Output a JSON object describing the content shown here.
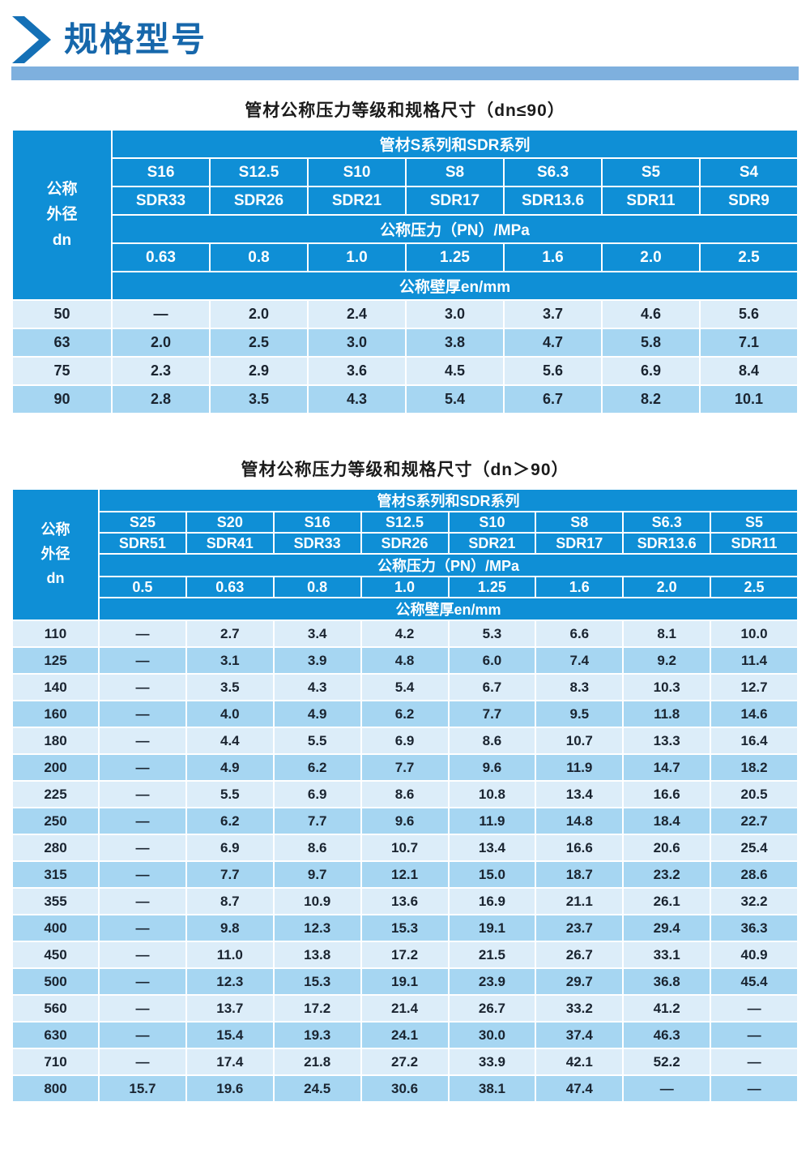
{
  "header": {
    "title": "规格型号"
  },
  "colors": {
    "header_blue": "#0f8fd6",
    "row_light": "#dcedf9",
    "row_dark": "#a6d6f2",
    "banner_blue": "#7eb0de",
    "accent_blue": "#1667ab",
    "cell_text": "#1a2430"
  },
  "tables": [
    {
      "title": "管材公称压力等级和规格尺寸（dn≤90）",
      "corner_label": "公称\n外径\ndn",
      "series_header": "管材S系列和SDR系列",
      "s_series": [
        "S16",
        "S12.5",
        "S10",
        "S8",
        "S6.3",
        "S5",
        "S4"
      ],
      "sdr_series": [
        "SDR33",
        "SDR26",
        "SDR21",
        "SDR17",
        "SDR13.6",
        "SDR11",
        "SDR9"
      ],
      "pressure_header": "公称压力（PN）/MPa",
      "pn_values": [
        "0.63",
        "0.8",
        "1.0",
        "1.25",
        "1.6",
        "2.0",
        "2.5"
      ],
      "thickness_header": "公称壁厚en/mm",
      "rows": [
        {
          "dn": "50",
          "values": [
            "—",
            "2.0",
            "2.4",
            "3.0",
            "3.7",
            "4.6",
            "5.6"
          ]
        },
        {
          "dn": "63",
          "values": [
            "2.0",
            "2.5",
            "3.0",
            "3.8",
            "4.7",
            "5.8",
            "7.1"
          ]
        },
        {
          "dn": "75",
          "values": [
            "2.3",
            "2.9",
            "3.6",
            "4.5",
            "5.6",
            "6.9",
            "8.4"
          ]
        },
        {
          "dn": "90",
          "values": [
            "2.8",
            "3.5",
            "4.3",
            "5.4",
            "6.7",
            "8.2",
            "10.1"
          ]
        }
      ]
    },
    {
      "title": "管材公称压力等级和规格尺寸（dn＞90）",
      "corner_label": "公称\n外径\ndn",
      "series_header": "管材S系列和SDR系列",
      "s_series": [
        "S25",
        "S20",
        "S16",
        "S12.5",
        "S10",
        "S8",
        "S6.3",
        "S5"
      ],
      "sdr_series": [
        "SDR51",
        "SDR41",
        "SDR33",
        "SDR26",
        "SDR21",
        "SDR17",
        "SDR13.6",
        "SDR11"
      ],
      "pressure_header": "公称压力（PN）/MPa",
      "pn_values": [
        "0.5",
        "0.63",
        "0.8",
        "1.0",
        "1.25",
        "1.6",
        "2.0",
        "2.5"
      ],
      "thickness_header": "公称壁厚en/mm",
      "rows": [
        {
          "dn": "110",
          "values": [
            "—",
            "2.7",
            "3.4",
            "4.2",
            "5.3",
            "6.6",
            "8.1",
            "10.0"
          ]
        },
        {
          "dn": "125",
          "values": [
            "—",
            "3.1",
            "3.9",
            "4.8",
            "6.0",
            "7.4",
            "9.2",
            "11.4"
          ]
        },
        {
          "dn": "140",
          "values": [
            "—",
            "3.5",
            "4.3",
            "5.4",
            "6.7",
            "8.3",
            "10.3",
            "12.7"
          ]
        },
        {
          "dn": "160",
          "values": [
            "—",
            "4.0",
            "4.9",
            "6.2",
            "7.7",
            "9.5",
            "11.8",
            "14.6"
          ]
        },
        {
          "dn": "180",
          "values": [
            "—",
            "4.4",
            "5.5",
            "6.9",
            "8.6",
            "10.7",
            "13.3",
            "16.4"
          ]
        },
        {
          "dn": "200",
          "values": [
            "—",
            "4.9",
            "6.2",
            "7.7",
            "9.6",
            "11.9",
            "14.7",
            "18.2"
          ]
        },
        {
          "dn": "225",
          "values": [
            "—",
            "5.5",
            "6.9",
            "8.6",
            "10.8",
            "13.4",
            "16.6",
            "20.5"
          ]
        },
        {
          "dn": "250",
          "values": [
            "—",
            "6.2",
            "7.7",
            "9.6",
            "11.9",
            "14.8",
            "18.4",
            "22.7"
          ]
        },
        {
          "dn": "280",
          "values": [
            "—",
            "6.9",
            "8.6",
            "10.7",
            "13.4",
            "16.6",
            "20.6",
            "25.4"
          ]
        },
        {
          "dn": "315",
          "values": [
            "—",
            "7.7",
            "9.7",
            "12.1",
            "15.0",
            "18.7",
            "23.2",
            "28.6"
          ]
        },
        {
          "dn": "355",
          "values": [
            "—",
            "8.7",
            "10.9",
            "13.6",
            "16.9",
            "21.1",
            "26.1",
            "32.2"
          ]
        },
        {
          "dn": "400",
          "values": [
            "—",
            "9.8",
            "12.3",
            "15.3",
            "19.1",
            "23.7",
            "29.4",
            "36.3"
          ]
        },
        {
          "dn": "450",
          "values": [
            "—",
            "11.0",
            "13.8",
            "17.2",
            "21.5",
            "26.7",
            "33.1",
            "40.9"
          ]
        },
        {
          "dn": "500",
          "values": [
            "—",
            "12.3",
            "15.3",
            "19.1",
            "23.9",
            "29.7",
            "36.8",
            "45.4"
          ]
        },
        {
          "dn": "560",
          "values": [
            "—",
            "13.7",
            "17.2",
            "21.4",
            "26.7",
            "33.2",
            "41.2",
            "—"
          ]
        },
        {
          "dn": "630",
          "values": [
            "—",
            "15.4",
            "19.3",
            "24.1",
            "30.0",
            "37.4",
            "46.3",
            "—"
          ]
        },
        {
          "dn": "710",
          "values": [
            "—",
            "17.4",
            "21.8",
            "27.2",
            "33.9",
            "42.1",
            "52.2",
            "—"
          ]
        },
        {
          "dn": "800",
          "values": [
            "15.7",
            "19.6",
            "24.5",
            "30.6",
            "38.1",
            "47.4",
            "—",
            "—"
          ]
        }
      ]
    }
  ]
}
